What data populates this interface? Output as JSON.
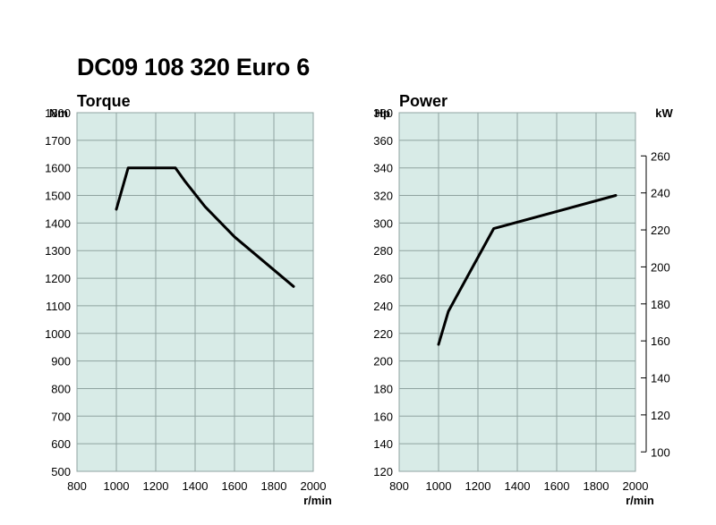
{
  "title": "DC09 108 320 Euro 6",
  "colors": {
    "plot_bg": "#d8ebe7",
    "grid": "#8fa3a0",
    "line": "#000000"
  },
  "chart_data": [
    {
      "type": "line",
      "title": "Torque",
      "ylabel": "Nm",
      "xlabel": "r/min",
      "xlim": [
        800,
        2000
      ],
      "ylim": [
        500,
        1800
      ],
      "xticks": [
        800,
        1000,
        1200,
        1400,
        1600,
        1800,
        2000
      ],
      "yticks": [
        500,
        600,
        700,
        800,
        900,
        1000,
        1100,
        1200,
        1300,
        1400,
        1500,
        1600,
        1700,
        1800
      ],
      "grid": true,
      "series": [
        {
          "x": [
            1000,
            1060,
            1300,
            1350,
            1450,
            1600,
            1700,
            1800,
            1900
          ],
          "values": [
            1450,
            1600,
            1600,
            1550,
            1460,
            1350,
            1290,
            1230,
            1170
          ]
        }
      ]
    },
    {
      "type": "line",
      "title": "Power",
      "ylabel": "Hp",
      "y2label": "kW",
      "xlabel": "r/min",
      "xlim": [
        800,
        2000
      ],
      "ylim": [
        120,
        380
      ],
      "y2lim": [
        100,
        260
      ],
      "xticks": [
        800,
        1000,
        1200,
        1400,
        1600,
        1800,
        2000
      ],
      "yticks": [
        120,
        140,
        160,
        180,
        200,
        220,
        240,
        260,
        280,
        300,
        320,
        340,
        360,
        380
      ],
      "y2ticks": [
        100,
        120,
        140,
        160,
        180,
        200,
        220,
        240,
        260
      ],
      "grid": true,
      "series": [
        {
          "x": [
            1000,
            1050,
            1280,
            1900
          ],
          "values": [
            212,
            236,
            296,
            320
          ]
        }
      ]
    }
  ]
}
